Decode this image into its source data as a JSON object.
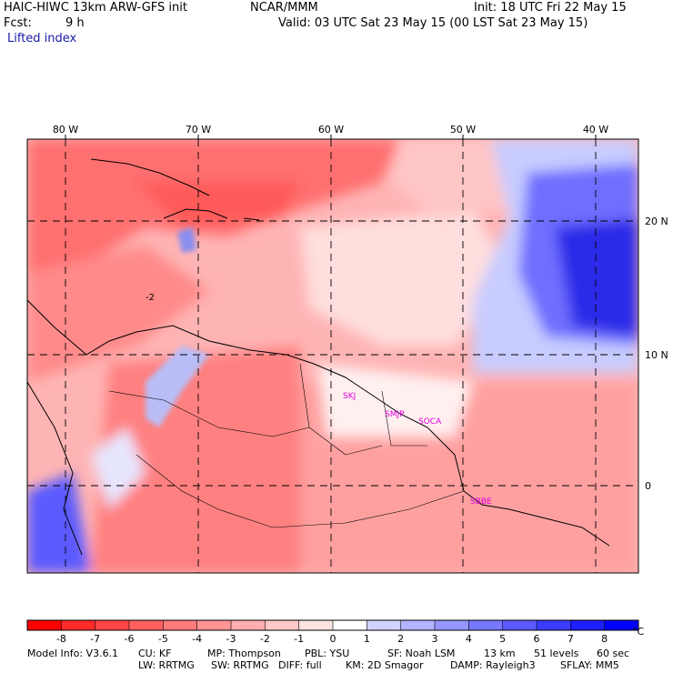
{
  "header": {
    "title_left": "HAIC-HIWC 13km ARW-GFS init",
    "title_org": "NCAR/MMM",
    "init": "Init: 18 UTC Fri 22 May 15",
    "fcst_label": "Fcst:",
    "fcst_value": "9 h",
    "valid": "Valid: 03 UTC Sat 23 May 15 (00 LST Sat 23 May 15)",
    "field": "Lifted index"
  },
  "map": {
    "lon_labels": [
      "80 W",
      "70 W",
      "60 W",
      "50 W",
      "40 W"
    ],
    "lat_labels": [
      "20 N",
      "10 N",
      "0"
    ],
    "contour_label": "-2",
    "stations": [
      "SKJ",
      "SMJP",
      "SOCA",
      "SBBE"
    ],
    "station_color": "#e000e0",
    "colors": {
      "strong_neg": "#ff2020",
      "mid_neg": "#ff7d7d",
      "weak_neg": "#ffc4c4",
      "neutral": "#fff4f4",
      "weak_pos": "#c8ccff",
      "mid_pos": "#6e6eff",
      "strong_pos": "#1a1ae6"
    }
  },
  "colorbar": {
    "unit": "°C",
    "labels": [
      "-8",
      "-7",
      "-6",
      "-5",
      "-4",
      "-3",
      "-2",
      "-1",
      "0",
      "1",
      "2",
      "3",
      "4",
      "5",
      "6",
      "7",
      "8"
    ],
    "colors": [
      "#ff0000",
      "#ff2a2a",
      "#ff4545",
      "#ff5f5f",
      "#ff7a7a",
      "#ff9494",
      "#ffaeae",
      "#ffc8c8",
      "#ffe2e2",
      "#ffffff",
      "#d2d2ff",
      "#b4b4ff",
      "#9696ff",
      "#7878ff",
      "#5a5aff",
      "#3c3cff",
      "#1e1eff",
      "#0000ff"
    ]
  },
  "footer": {
    "model_info": "Model Info: V3.6.1",
    "cu": "CU: KF",
    "mp": "MP: Thompson",
    "pbl": "PBL: YSU",
    "sf": "SF: Noah LSM",
    "res": "13 km",
    "levels": "51 levels",
    "dt": "60 sec",
    "lw": "LW: RRTMG",
    "sw": "SW: RRTMG",
    "diff": "DIFF: full",
    "km": "KM: 2D Smagor",
    "damp": "DAMP: Rayleigh3",
    "sflay": "SFLAY: MM5"
  }
}
